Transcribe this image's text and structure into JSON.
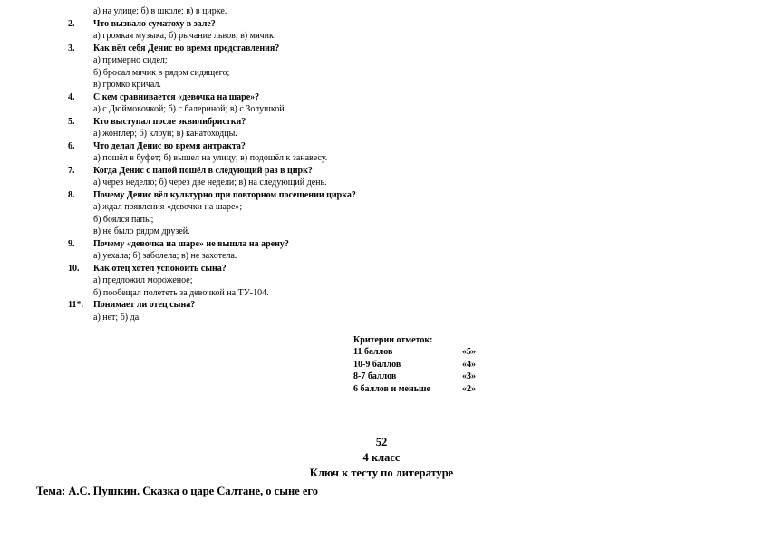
{
  "questions": [
    {
      "n": "",
      "a": "а) на улице; б) в школе; в) в цирке."
    },
    {
      "n": "2.",
      "q": "Что вызвало суматоху в зале?",
      "a": "а) громкая музыка; б) рычание львов; в) мячик."
    },
    {
      "n": "3.",
      "q": "Как вёл себя Денис во время представления?",
      "lines": [
        "а) примерно сидел;",
        "б) бросал мячик в рядом сидящего;",
        "в) громко кричал."
      ]
    },
    {
      "n": "4.",
      "q": "С кем сравнивается «девочка на шаре»?",
      "a": "а) с Дюймовочкой; б) с балериной; в) с Золушкой."
    },
    {
      "n": "5.",
      "q": "Кто выступал после эквилибристки?",
      "a": "а) жонглёр; б) клоун; в) канатоходцы."
    },
    {
      "n": "6.",
      "q": "Что делал Денис во время антракта?",
      "a": "а) пошёл в буфет; б) вышел на улицу; в) подошёл к занавесу."
    },
    {
      "n": "7.",
      "q": "Когда Денис с папой пошёл в следующий раз в цирк?",
      "a": "а) через неделю; б) через две недели; в) на следующий день."
    },
    {
      "n": "8.",
      "q": "Почему Денис вёл культурно при повторном посещении цирка?",
      "lines": [
        "а) ждал появления «девочки на шаре»;",
        "б) боялся папы;",
        "в) не было рядом друзей."
      ]
    },
    {
      "n": "9.",
      "q": "Почему «девочка на шаре» не вышла на арену?",
      "a": "а) уехала; б) заболела; в) не захотела."
    },
    {
      "n": "10.",
      "q": "Как отец хотел успокоить сына?",
      "lines": [
        "а) предложил мороженое;",
        "б) пообещал полететь за девочкой на ТУ-104."
      ]
    },
    {
      "n": "11*.",
      "q": "Понимает ли отец сына?",
      "a": "а) нет; б) да."
    }
  ],
  "grading": {
    "title": "Критерии отметок:",
    "rows": [
      {
        "range": "11 баллов",
        "grade": "«5»"
      },
      {
        "range": "10-9 баллов",
        "grade": "«4»"
      },
      {
        "range": "8-7 баллов",
        "grade": "«3»"
      },
      {
        "range": "6 баллов и меньше",
        "grade": "«2»"
      }
    ]
  },
  "footer": {
    "page": "52",
    "grade": "4 класс",
    "title": "Ключ к тесту по литературе"
  },
  "theme": "Тема: А.С. Пушкин. Сказка о царе Салтане, о сыне его"
}
